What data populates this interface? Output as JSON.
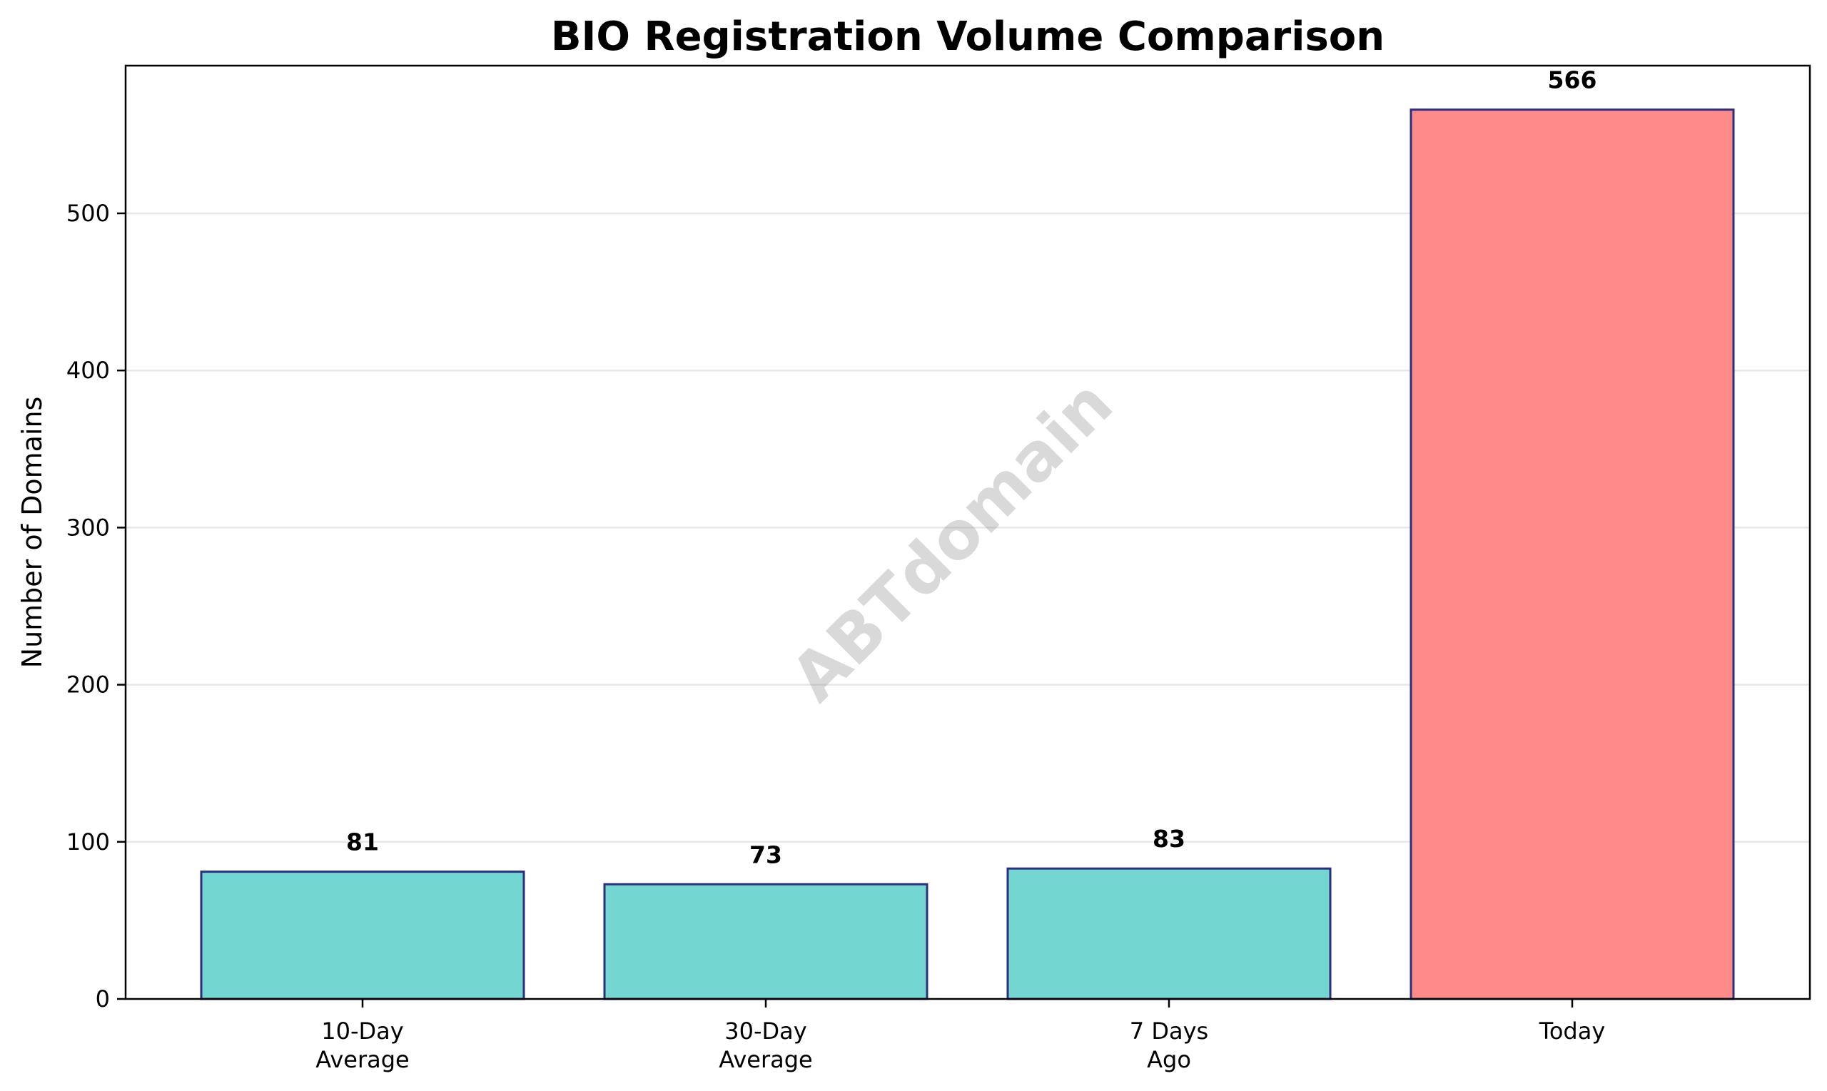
{
  "chart_data": {
    "type": "bar",
    "title": "BIO Registration Volume Comparison",
    "xlabel": "",
    "ylabel": "Number of Domains",
    "categories": [
      [
        "10-Day",
        "Average"
      ],
      [
        "30-Day",
        "Average"
      ],
      [
        "7 Days",
        "Ago"
      ],
      [
        "Today"
      ]
    ],
    "values": [
      81,
      73,
      83,
      566
    ],
    "value_labels": [
      "81",
      "73",
      "83",
      "566"
    ],
    "bar_colors": [
      "#74d6d1",
      "#74d6d1",
      "#74d6d1",
      "#ff8a8a"
    ],
    "bar_edge_color": "#2b2f7f",
    "ylim": [
      0,
      594
    ],
    "yticks": [
      0,
      100,
      200,
      300,
      400,
      500
    ],
    "grid": "y",
    "legend": "none",
    "watermark": "ABTdomain"
  }
}
